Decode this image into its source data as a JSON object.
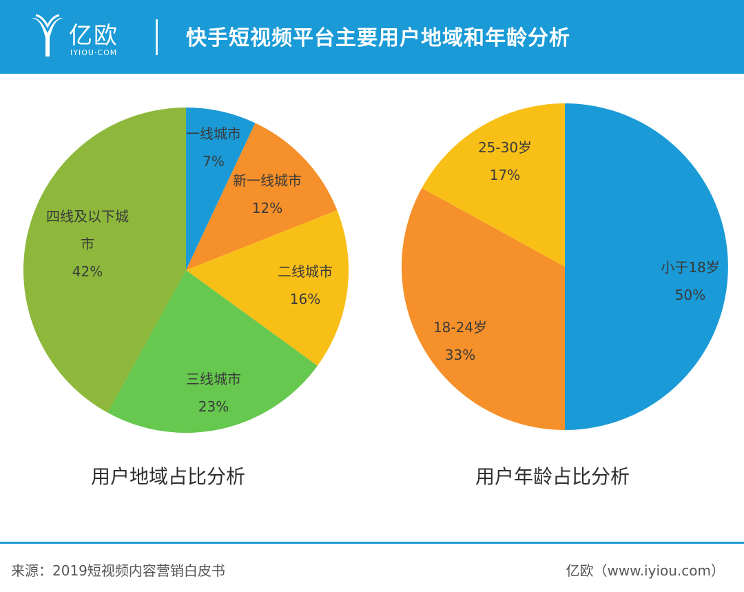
{
  "header": {
    "logo_name": "亿欧",
    "logo_url": "IYIOU·COM",
    "title": "快手短视频平台主要用户地域和年龄分析"
  },
  "chart_data": [
    {
      "type": "pie",
      "title": "用户地域占比分析",
      "slices": [
        {
          "label": "一线城市",
          "value": 7,
          "value_label": "7%",
          "color": "#1a9ad6"
        },
        {
          "label": "新一线城市",
          "value": 12,
          "value_label": "12%",
          "color": "#f5902a"
        },
        {
          "label": "二线城市",
          "value": 16,
          "value_label": "16%",
          "color": "#f8bf17"
        },
        {
          "label": "三线城市",
          "value": 23,
          "value_label": "23%",
          "color": "#66c84e"
        },
        {
          "label": "四线及以下城市",
          "label_lines": [
            "四线及以下城",
            "市"
          ],
          "value": 42,
          "value_label": "42%",
          "color": "#8db83c"
        }
      ]
    },
    {
      "type": "pie",
      "title": "用户年龄占比分析",
      "slices": [
        {
          "label": "小于18岁",
          "value": 50,
          "value_label": "50%",
          "color": "#1a9ad6"
        },
        {
          "label": "18-24岁",
          "value": 33,
          "value_label": "33%",
          "color": "#f5902a"
        },
        {
          "label": "25-30岁",
          "value": 17,
          "value_label": "17%",
          "color": "#f8bf17"
        }
      ]
    }
  ],
  "footer": {
    "source": "来源：2019短视频内容营销白皮书",
    "credit": "亿欧（www.iyiou.com）"
  }
}
